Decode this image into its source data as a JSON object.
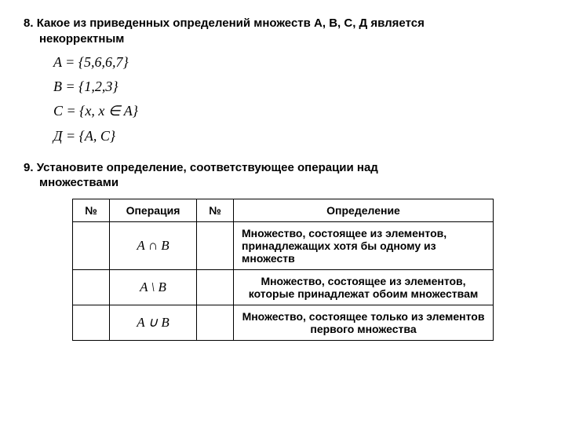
{
  "q8": {
    "number": "8.",
    "text": "Какое из приведенных определений множеств А, В, С, Д является",
    "text2": "некорректным",
    "formulas": {
      "a": "A = {5,6,6,7}",
      "b": "B = {1,2,3}",
      "c": "C = {x, x ∈ A}",
      "d": "Д = {A, C}"
    }
  },
  "q9": {
    "number": "9.",
    "text": "Установите определение, соответствующее операции над",
    "text2": "множествами",
    "table": {
      "headers": {
        "num1": "№",
        "op": "Операция",
        "num2": "№",
        "def": "Определение"
      },
      "rows": [
        {
          "op": "A ∩ B",
          "def": "Множество, состоящее из элементов, принадлежащих хотя бы одному из множеств",
          "align": "left"
        },
        {
          "op": "A \\ B",
          "def": "Множество, состоящее из элементов, которые принадлежат обоим множествам",
          "align": "center"
        },
        {
          "op": "A ∪ B",
          "def": "Множество, состоящее только из элементов первого множества",
          "align": "center"
        }
      ]
    }
  },
  "styling": {
    "background_color": "#ffffff",
    "text_color": "#000000",
    "header_fontsize": 15,
    "formula_fontsize": 18,
    "table_fontsize": 14,
    "border_color": "#000000",
    "border_width": 1.5,
    "font_family_body": "Arial",
    "font_family_formula": "Times New Roman"
  }
}
